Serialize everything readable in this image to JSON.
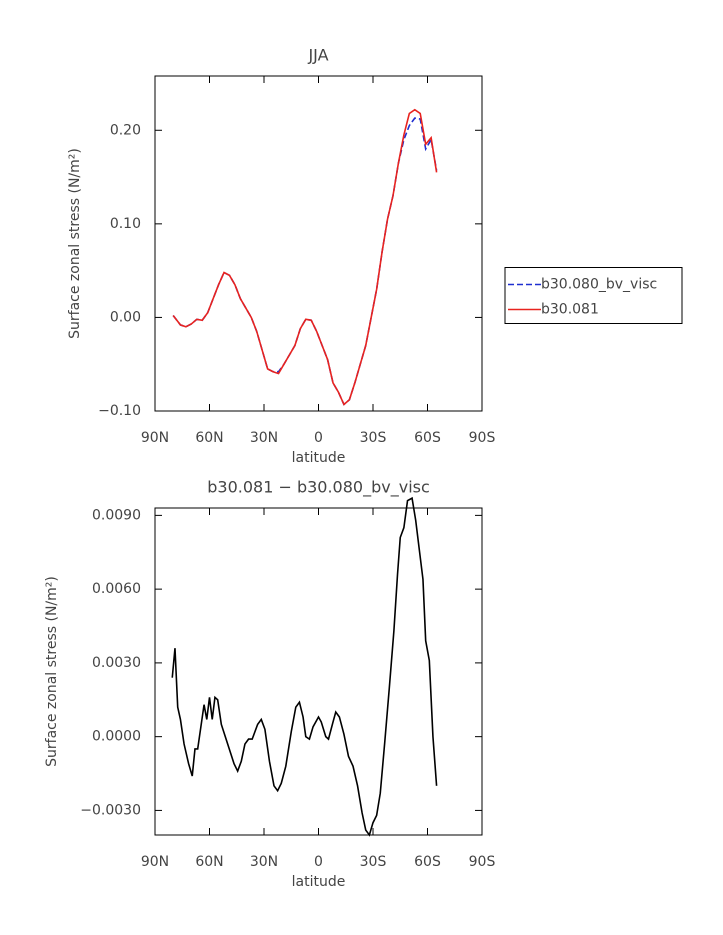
{
  "chart_data": [
    {
      "type": "line",
      "title": "JJA",
      "x": [
        80,
        76,
        73,
        70,
        67,
        64,
        61,
        58,
        55,
        52,
        49,
        46,
        43,
        40,
        37,
        34,
        31,
        28,
        25,
        22,
        19,
        16,
        13,
        10,
        7,
        4,
        1,
        -2,
        -5,
        -8,
        -11,
        -14,
        -17,
        -20,
        -23,
        -26,
        -29,
        -32,
        -35,
        -38,
        -41,
        -44,
        -47,
        -50,
        -53,
        -56,
        -59,
        -62,
        -65
      ],
      "series": [
        {
          "name": "b30.080_bv_visc",
          "color": "#1f2fd0",
          "dash": true,
          "values": [
            0.002,
            -0.008,
            -0.01,
            -0.007,
            -0.002,
            -0.003,
            0.005,
            0.02,
            0.035,
            0.048,
            0.045,
            0.035,
            0.02,
            0.01,
            0.0,
            -0.015,
            -0.035,
            -0.055,
            -0.058,
            -0.058,
            -0.05,
            -0.04,
            -0.03,
            -0.012,
            -0.002,
            -0.003,
            -0.015,
            -0.03,
            -0.045,
            -0.07,
            -0.08,
            -0.093,
            -0.088,
            -0.07,
            -0.05,
            -0.03,
            0.0,
            0.03,
            0.07,
            0.105,
            0.13,
            0.165,
            0.19,
            0.205,
            0.213,
            0.212,
            0.18,
            0.19,
            0.157
          ]
        },
        {
          "name": "b30.081",
          "color": "#e8231f",
          "dash": false,
          "values": [
            0.002,
            -0.008,
            -0.01,
            -0.007,
            -0.002,
            -0.003,
            0.005,
            0.02,
            0.035,
            0.048,
            0.045,
            0.035,
            0.02,
            0.01,
            0.0,
            -0.015,
            -0.035,
            -0.055,
            -0.058,
            -0.06,
            -0.05,
            -0.04,
            -0.03,
            -0.012,
            -0.002,
            -0.003,
            -0.015,
            -0.03,
            -0.045,
            -0.07,
            -0.08,
            -0.093,
            -0.088,
            -0.07,
            -0.05,
            -0.03,
            0.0,
            0.03,
            0.07,
            0.105,
            0.13,
            0.165,
            0.195,
            0.218,
            0.222,
            0.218,
            0.185,
            0.192,
            0.155
          ]
        }
      ],
      "xlim": [
        90,
        -90
      ],
      "xticks": [
        {
          "value": 90,
          "label": "90N"
        },
        {
          "value": 60,
          "label": "60N"
        },
        {
          "value": 30,
          "label": "30N"
        },
        0,
        {
          "value": -30,
          "label": "30S"
        },
        {
          "value": -60,
          "label": "60S"
        },
        {
          "value": -90,
          "label": "90S"
        }
      ],
      "ylim": [
        -0.1,
        0.258
      ],
      "yticks": [
        {
          "value": -0.1,
          "label": "−0.10"
        },
        {
          "value": 0,
          "label": "0.00"
        },
        {
          "value": 0.1,
          "label": "0.10"
        },
        {
          "value": 0.2,
          "label": "0.20"
        }
      ],
      "xlabel": "latitude",
      "ylabel": "Surface zonal stress (N/m²)",
      "legend": "right"
    },
    {
      "type": "line",
      "title": "b30.081 − b30.080_bv_visc",
      "x": [
        80.5,
        79,
        77.5,
        76,
        74,
        71.5,
        69.5,
        68,
        66.5,
        63,
        61.5,
        60,
        58.5,
        57,
        55.5,
        53.5,
        50,
        46.5,
        44.5,
        42.5,
        40.5,
        38.5,
        36.5,
        33.5,
        31.5,
        29.5,
        27,
        24.5,
        22.5,
        20.5,
        18,
        15,
        12.5,
        10.5,
        8.5,
        7,
        5,
        3,
        0,
        -1.5,
        -4,
        -5.5,
        -8,
        -9.5,
        -11.5,
        -14,
        -16.5,
        -19,
        -21.5,
        -24,
        -26,
        -28,
        -30,
        -32,
        -34,
        -36.5,
        -39,
        -41.5,
        -43.5,
        -45,
        -47,
        -49,
        -51.5,
        -53.5,
        -55.5,
        -57.5,
        -59,
        -61,
        -63,
        -65
      ],
      "series": [
        {
          "color": "#000000",
          "dash": false,
          "values": [
            0.0024,
            0.0036,
            0.0012,
            0.0007,
            -0.0003,
            -0.0011,
            -0.0016,
            -0.0005,
            -0.0005,
            0.0013,
            0.0007,
            0.0016,
            0.0007,
            0.0016,
            0.0015,
            0.0005,
            -0.0003,
            -0.0011,
            -0.0014,
            -0.001,
            -0.0003,
            -0.0001,
            -0.0001,
            0.0005,
            0.0007,
            0.0003,
            -0.001,
            -0.002,
            -0.0022,
            -0.0019,
            -0.0012,
            0.0002,
            0.0012,
            0.0014,
            0.0008,
            0,
            -0.0001,
            0.0004,
            0.0008,
            0.0006,
            0,
            -0.0001,
            0.0006,
            0.001,
            0.0008,
            0.0001,
            -0.0008,
            -0.0012,
            -0.002,
            -0.0031,
            -0.0038,
            -0.004,
            -0.0035,
            -0.0032,
            -0.0023,
            -0.0002,
            0.002,
            0.0043,
            0.0066,
            0.0081,
            0.0085,
            0.0096,
            0.0097,
            0.0088,
            0.0076,
            0.0064,
            0.0039,
            0.0031,
            0,
            -0.002
          ]
        }
      ],
      "xlim": [
        90,
        -90
      ],
      "xticks": [
        {
          "value": 90,
          "label": "90N"
        },
        {
          "value": 60,
          "label": "60N"
        },
        {
          "value": 30,
          "label": "30N"
        },
        0,
        {
          "value": -30,
          "label": "30S"
        },
        {
          "value": -60,
          "label": "60S"
        },
        {
          "value": -90,
          "label": "90S"
        }
      ],
      "ylim": [
        -0.004,
        0.0093
      ],
      "yticks": [
        {
          "value": -0.003,
          "label": "−0.0030"
        },
        {
          "value": 0,
          "label": "0.0000"
        },
        {
          "value": 0.003,
          "label": "0.0030"
        },
        {
          "value": 0.006,
          "label": "0.0060"
        },
        {
          "value": 0.009,
          "label": "0.0090"
        }
      ],
      "xlabel": "latitude",
      "ylabel": "Surface zonal stress (N/m²)"
    }
  ]
}
